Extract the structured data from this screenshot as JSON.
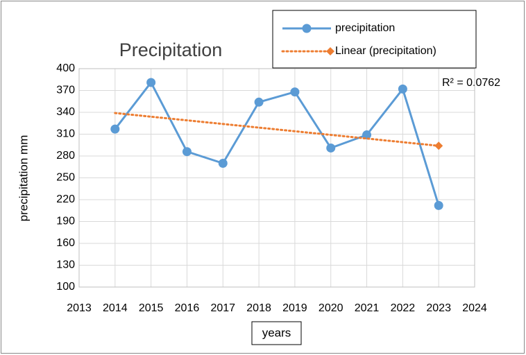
{
  "chart_data": {
    "type": "line",
    "title": "Precipitation",
    "y_label": "precipitation mm",
    "x_label": "years",
    "annotation": "R² = 0.0762",
    "xlim": [
      2013,
      2024
    ],
    "xticks": [
      2013,
      2014,
      2015,
      2016,
      2017,
      2018,
      2019,
      2020,
      2021,
      2022,
      2023,
      2024
    ],
    "ylim": [
      100,
      400
    ],
    "yticks": [
      100,
      130,
      160,
      190,
      220,
      250,
      280,
      310,
      340,
      370,
      400
    ],
    "grid": true,
    "legend": "top-right",
    "series": [
      {
        "name": "precipitation",
        "color": "#5b9bd5",
        "style": "solid",
        "marker": "circle",
        "x": [
          2014,
          2015,
          2016,
          2017,
          2018,
          2019,
          2020,
          2021,
          2022,
          2023
        ],
        "values": [
          317,
          381,
          286,
          270,
          354,
          368,
          291,
          309,
          372,
          212
        ]
      },
      {
        "name": "Linear (precipitation)",
        "color": "#ed7d31",
        "style": "dotted",
        "marker": "diamond",
        "x": [
          2014,
          2023
        ],
        "values": [
          339,
          294
        ]
      }
    ]
  }
}
